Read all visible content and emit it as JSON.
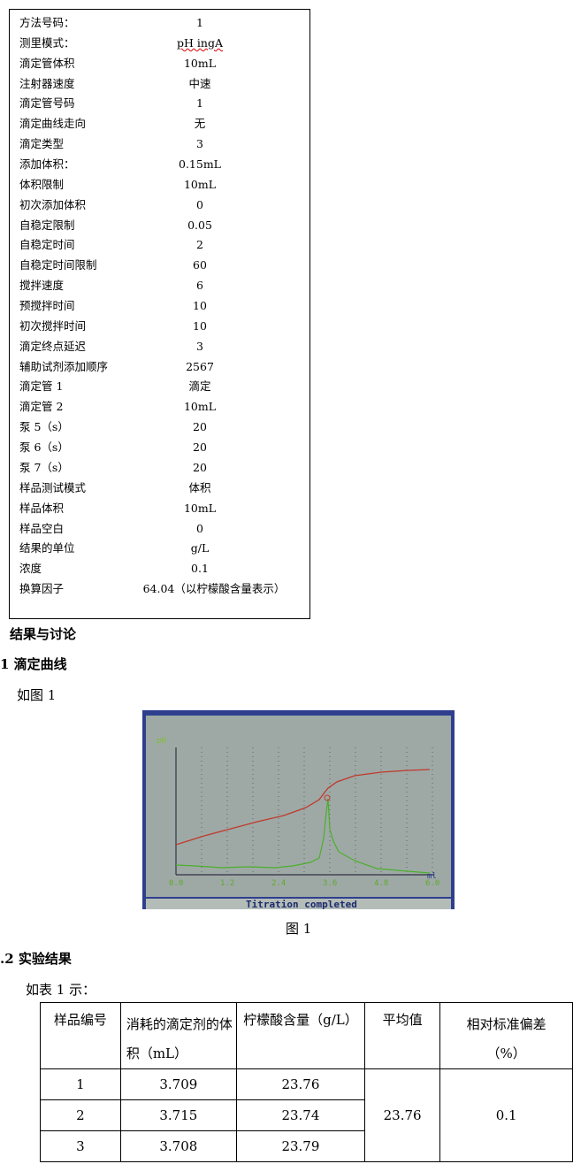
{
  "params": [
    {
      "label": "方法号码：",
      "value": "1"
    },
    {
      "label": "测里模式：",
      "value": "pH ingA"
    },
    {
      "label": "滴定管体积",
      "value": "10mL"
    },
    {
      "label": "注射器速度",
      "value": "中速"
    },
    {
      "label": "滴定管号码",
      "value": "1"
    },
    {
      "label": "滴定曲线走向",
      "value": "无"
    },
    {
      "label": "滴定类型",
      "value": "3"
    },
    {
      "label": "添加体积：",
      "value": "0.15mL"
    },
    {
      "label": "体积限制",
      "value": "10mL"
    },
    {
      "label": "初次添加体积",
      "value": "0"
    },
    {
      "label": "自稳定限制",
      "value": "0.05"
    },
    {
      "label": "自稳定时间",
      "value": "2"
    },
    {
      "label": "自稳定时间限制",
      "value": "60"
    },
    {
      "label": "搅拌速度",
      "value": "6"
    },
    {
      "label": "预搅拌时间",
      "value": "10"
    },
    {
      "label": "初次搅拌时间",
      "value": "10"
    },
    {
      "label": "滴定终点延迟",
      "value": "3"
    },
    {
      "label": "辅助试剂添加顺序",
      "value": "2567"
    },
    {
      "label": "滴定管 1",
      "value": "滴定"
    },
    {
      "label": "滴定管 2",
      "value": "10mL"
    },
    {
      "label": "泵 5（s）",
      "value": "20"
    },
    {
      "label": "泵 6（s）",
      "value": "20"
    },
    {
      "label": "泵 7（s）",
      "value": "20"
    },
    {
      "label": "样品测试模式",
      "value": "体积"
    },
    {
      "label": "样品体积",
      "value": "10mL"
    },
    {
      "label": "样品空白",
      "value": "0"
    },
    {
      "label": "结果的单位",
      "value": "g/L"
    },
    {
      "label": "浓度",
      "value": "0.1"
    },
    {
      "label": "换算因子",
      "value": "64.04（以柠檬酸含量表示）"
    }
  ],
  "section_heading": "结果与讨论",
  "sub1_heading": "1  滴定曲线",
  "sub1_text": "如图 1",
  "figure": {
    "y_label": "pH",
    "x_unit": "ml",
    "x_ticks": [
      "0.0",
      "1.2",
      "2.4",
      "3.6",
      "4.8",
      "6.0"
    ],
    "status": "Titration completed",
    "caption": "图 1",
    "colors": {
      "background": "#9fa8a4",
      "curve": "#c0392b",
      "derivative": "#4caf2a",
      "frame": "#2a3a8c"
    }
  },
  "sub2_heading": ".2  实验结果",
  "sub2_text": "如表 1 示：",
  "table": {
    "headers": [
      "样品编号",
      "消耗的滴定剂的体积（mL）",
      "柠檬酸含量（g/L）",
      "平均值",
      "相对标准偏差（%）"
    ],
    "rows": [
      [
        "1",
        "3.709",
        "23.76"
      ],
      [
        "2",
        "3.715",
        "23.74"
      ],
      [
        "3",
        "3.708",
        "23.79"
      ]
    ],
    "mean": "23.76",
    "rsd": "0.1"
  }
}
